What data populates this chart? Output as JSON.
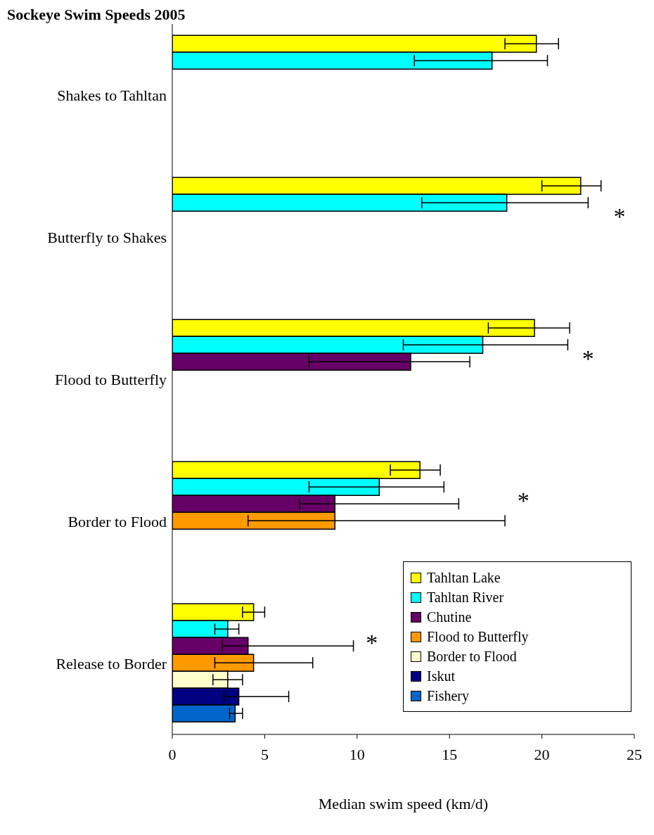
{
  "chart_data": {
    "type": "bar",
    "orientation": "horizontal",
    "title": "Sockeye Swim Speeds 2005",
    "xlabel": "Median swim speed (km/d)",
    "categories": [
      "Shakes to Tahltan",
      "Butterfly to Shakes",
      "Flood to Butterfly",
      "Border to Flood",
      "Release to Border"
    ],
    "series": [
      {
        "name": "Tahltan Lake",
        "color": "#ffff00",
        "values": [
          19.7,
          22.1,
          19.6,
          13.4,
          4.4
        ],
        "errors": [
          [
            18.0,
            20.9
          ],
          [
            20.0,
            23.2
          ],
          [
            17.1,
            21.5
          ],
          [
            11.8,
            14.5
          ],
          [
            3.8,
            5.0
          ]
        ]
      },
      {
        "name": "Tahltan River",
        "color": "#00ffff",
        "values": [
          17.3,
          18.1,
          16.8,
          11.2,
          3.0
        ],
        "errors": [
          [
            13.1,
            20.3
          ],
          [
            13.5,
            22.5
          ],
          [
            12.5,
            21.4
          ],
          [
            7.4,
            14.7
          ],
          [
            2.3,
            3.6
          ]
        ]
      },
      {
        "name": "Chutine",
        "color": "#660066",
        "values": [
          null,
          null,
          12.9,
          8.8,
          4.1
        ],
        "errors": [
          null,
          null,
          [
            7.4,
            16.1
          ],
          [
            6.9,
            15.5
          ],
          [
            2.7,
            9.8
          ]
        ]
      },
      {
        "name": "Flood to Butterfly",
        "color": "#ff9900",
        "values": [
          null,
          null,
          null,
          8.8,
          4.4
        ],
        "errors": [
          null,
          null,
          null,
          [
            4.1,
            18.0
          ],
          [
            2.3,
            7.6
          ]
        ]
      },
      {
        "name": "Border to Flood",
        "color": "#ffffcc",
        "values": [
          null,
          null,
          null,
          null,
          3.0
        ],
        "errors": [
          null,
          null,
          null,
          null,
          [
            2.2,
            3.8
          ]
        ]
      },
      {
        "name": "Iskut",
        "color": "#000080",
        "values": [
          null,
          null,
          null,
          null,
          3.6
        ],
        "errors": [
          null,
          null,
          null,
          null,
          [
            2.8,
            6.3
          ]
        ]
      },
      {
        "name": "Fishery",
        "color": "#0066cc",
        "values": [
          null,
          null,
          null,
          null,
          3.4
        ],
        "errors": [
          null,
          null,
          null,
          null,
          [
            3.1,
            3.8
          ]
        ]
      }
    ],
    "xlim": [
      0,
      25
    ],
    "xticks": [
      0,
      5,
      10,
      15,
      20,
      25
    ],
    "grid": false,
    "legend": "bottom right",
    "annotations": [
      "*",
      "*",
      "*",
      "*"
    ]
  }
}
